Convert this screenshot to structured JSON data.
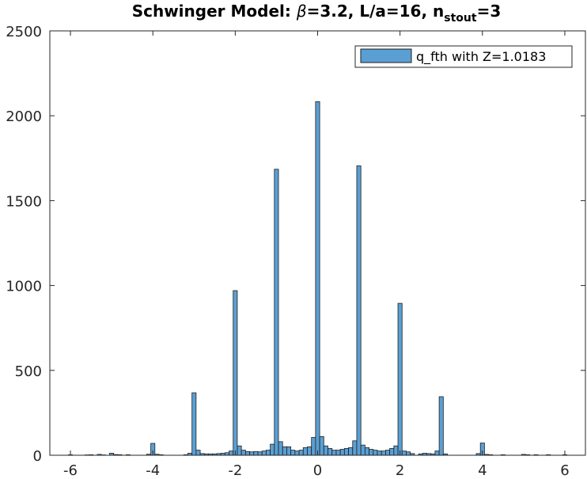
{
  "chart_data": {
    "type": "bar",
    "title": {
      "prefix": "Schwinger Model: ",
      "beta_symbol": "β",
      "middle": "=3.2, L/a=16, n",
      "subscript": "stout",
      "suffix": "=3"
    },
    "xlim": [
      -6.5,
      6.5
    ],
    "ylim": [
      0,
      2500
    ],
    "xticks": [
      -6,
      -4,
      -2,
      0,
      2,
      4,
      6
    ],
    "yticks": [
      0,
      500,
      1000,
      1500,
      2000,
      2500
    ],
    "bar_width": 0.1,
    "bar_color": "#5a9fd4",
    "edge_color": "#1f1f1f",
    "grid": false,
    "legend": {
      "position": "top-right",
      "label": "q_fth with Z=1.0183"
    },
    "series": [
      {
        "name": "q_fth with Z=1.0183",
        "x": [
          -6.0,
          -5.6,
          -5.5,
          -5.3,
          -5.2,
          -5.0,
          -4.9,
          -4.8,
          -4.6,
          -4.1,
          -4.0,
          -3.9,
          -3.8,
          -3.2,
          -3.1,
          -3.0,
          -2.9,
          -2.8,
          -2.7,
          -2.6,
          -2.5,
          -2.4,
          -2.3,
          -2.2,
          -2.1,
          -2.0,
          -1.9,
          -1.8,
          -1.7,
          -1.6,
          -1.5,
          -1.4,
          -1.3,
          -1.2,
          -1.1,
          -1.0,
          -0.9,
          -0.8,
          -0.7,
          -0.6,
          -0.5,
          -0.4,
          -0.3,
          -0.2,
          -0.1,
          0.0,
          0.1,
          0.2,
          0.3,
          0.4,
          0.5,
          0.6,
          0.7,
          0.8,
          0.9,
          1.0,
          1.1,
          1.2,
          1.3,
          1.4,
          1.5,
          1.6,
          1.7,
          1.8,
          1.9,
          2.0,
          2.1,
          2.2,
          2.3,
          2.5,
          2.6,
          2.7,
          2.8,
          2.9,
          3.0,
          3.1,
          3.9,
          4.0,
          4.1,
          4.2,
          4.5,
          5.0,
          5.1,
          5.3,
          5.6,
          6.0
        ],
        "values": [
          3,
          2,
          3,
          5,
          2,
          12,
          4,
          3,
          3,
          6,
          70,
          6,
          3,
          3,
          12,
          368,
          30,
          10,
          8,
          8,
          8,
          10,
          12,
          15,
          25,
          970,
          55,
          30,
          22,
          20,
          22,
          20,
          25,
          30,
          65,
          1685,
          80,
          50,
          50,
          30,
          25,
          30,
          45,
          50,
          105,
          2083,
          110,
          55,
          40,
          30,
          30,
          35,
          40,
          45,
          85,
          1705,
          60,
          45,
          35,
          30,
          25,
          25,
          30,
          40,
          55,
          895,
          25,
          20,
          10,
          8,
          12,
          10,
          8,
          25,
          345,
          8,
          10,
          72,
          5,
          3,
          3,
          5,
          3,
          3,
          3,
          3
        ]
      }
    ]
  }
}
